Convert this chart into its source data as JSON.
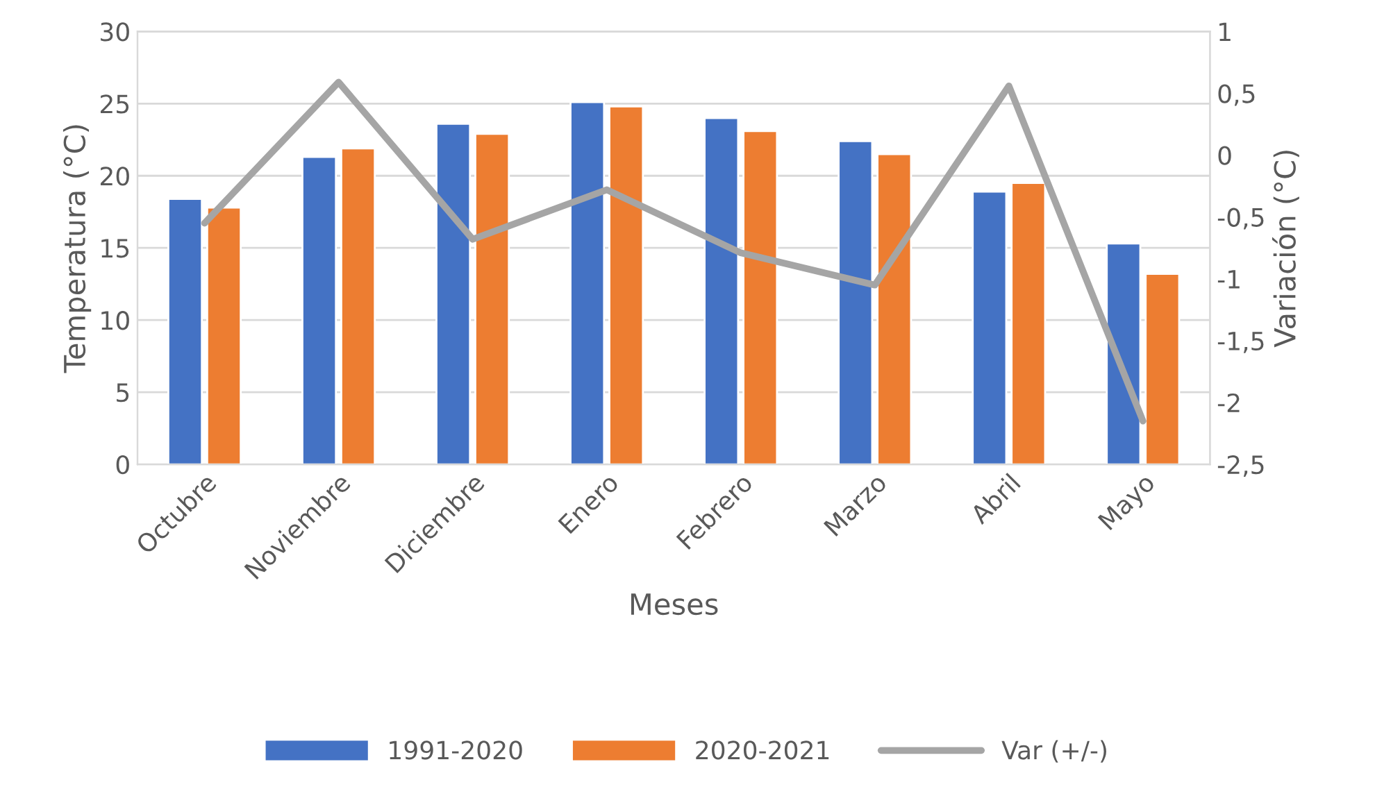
{
  "chart_data": {
    "type": "bar",
    "xlabel": "Meses",
    "ylabel": "Temperatura (°C)",
    "y2label": "Variación (°C)",
    "categories": [
      "Octubre",
      "Noviembre",
      "Diciembre",
      "Enero",
      "Febrero",
      "Marzo",
      "Abril",
      "Mayo"
    ],
    "series": [
      {
        "name": "1991-2020",
        "color": "#4472c4",
        "values": [
          18.4,
          21.3,
          23.6,
          25.1,
          24.0,
          22.4,
          18.9,
          15.3
        ]
      },
      {
        "name": "2020-2021",
        "color": "#ed7d31",
        "values": [
          17.8,
          21.9,
          22.9,
          24.8,
          23.1,
          21.5,
          19.5,
          13.2
        ]
      },
      {
        "name": "Var (+/-)",
        "color": "#a5a5a5",
        "type": "line",
        "axis": "y2",
        "values": [
          -0.55,
          0.59,
          -0.68,
          -0.28,
          -0.79,
          -1.05,
          0.56,
          -2.15
        ]
      }
    ],
    "ylim": [
      0,
      30
    ],
    "yticks": [
      0,
      5,
      10,
      15,
      20,
      25,
      30
    ],
    "y2lim": [
      -2.5,
      1
    ],
    "y2ticks": [
      {
        "value": -2.5,
        "label": "-2,5"
      },
      {
        "value": -2,
        "label": "-2"
      },
      {
        "value": -1.5,
        "label": "-1,5"
      },
      {
        "value": -1,
        "label": "-1"
      },
      {
        "value": -0.5,
        "label": "-0,5"
      },
      {
        "value": 0,
        "label": "0"
      },
      {
        "value": 0.5,
        "label": "0,5"
      },
      {
        "value": 1,
        "label": "1"
      }
    ],
    "grid": "y",
    "legend": "bottom"
  }
}
